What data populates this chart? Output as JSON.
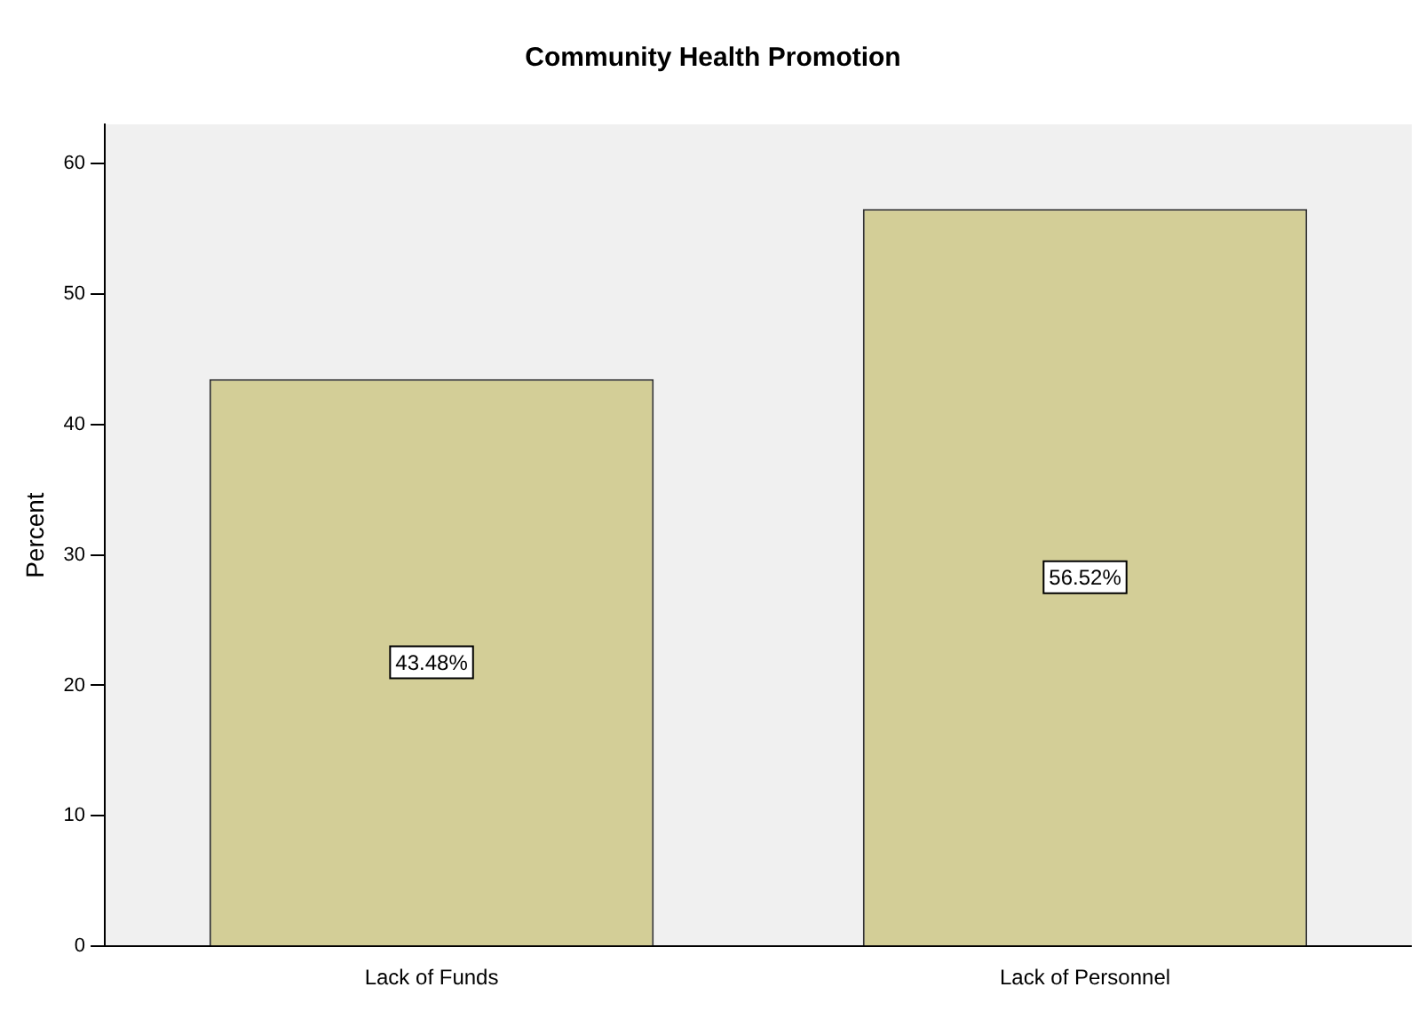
{
  "chart_data": {
    "type": "bar",
    "title": "Community Health Promotion",
    "ylabel": "Percent",
    "categories": [
      "Lack of Funds",
      "Lack of Personnel"
    ],
    "values": [
      43.48,
      56.52
    ],
    "value_labels": [
      "43.48%",
      "56.52%"
    ],
    "color": "#d3ce97",
    "ylim": [
      0,
      63
    ],
    "yticks": [
      0,
      10,
      20,
      30,
      40,
      50,
      60
    ],
    "grid": false,
    "legend": false
  }
}
